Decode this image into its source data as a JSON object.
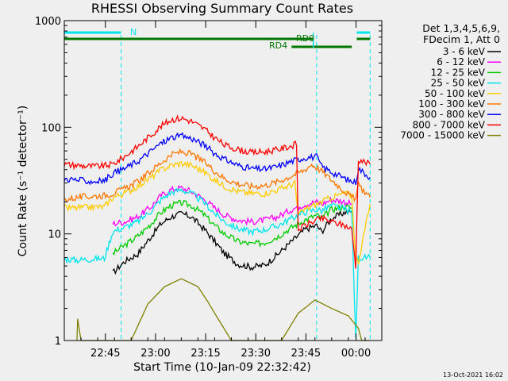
{
  "chart_data": {
    "type": "line",
    "title": "RHESSI Observing Summary Count Rates",
    "xlabel": "Start Time (10-Jan-09 22:32:42)",
    "ylabel": "Count Rate (s⁻¹ detector⁻¹)",
    "yscale": "log",
    "ylim": [
      1,
      1000
    ],
    "x_unit": "minutes since 22:32:42",
    "xlim": [
      0,
      95
    ],
    "y_ticks": [
      {
        "value": 1,
        "label": "1"
      },
      {
        "value": 10,
        "label": "10"
      },
      {
        "value": 100,
        "label": "100"
      },
      {
        "value": 1000,
        "label": "1000"
      }
    ],
    "x_ticks": [
      {
        "value": 12.3,
        "label": "22:45"
      },
      {
        "value": 27.3,
        "label": "23:00"
      },
      {
        "value": 42.3,
        "label": "23:15"
      },
      {
        "value": 57.3,
        "label": "23:30"
      },
      {
        "value": 72.3,
        "label": "23:45"
      },
      {
        "value": 87.3,
        "label": "00:00"
      }
    ],
    "legend_header": [
      "Det 1,3,4,5,6,9,",
      "FDecim 1, Att 0"
    ],
    "flag_labels": {
      "night": "N",
      "rd0": "RD0",
      "rd4": "RD4"
    },
    "flags": [
      {
        "name": "N",
        "color": "#00e5ee",
        "segments": [
          [
            0,
            17
          ]
        ]
      },
      {
        "name": "RD0",
        "color": "#007700",
        "segments": [
          [
            0,
            74.5
          ],
          [
            87.5,
            91.5
          ]
        ]
      },
      {
        "name": "RD4",
        "color": "#007700",
        "segments": [
          [
            68,
            86
          ]
        ]
      }
    ],
    "saa_edges": [
      17,
      75.5,
      91.5
    ],
    "series": [
      {
        "name": "3 - 6 keV",
        "color": "#000000",
        "x": [
          14.5,
          18,
          22,
          26,
          29,
          32,
          35,
          38,
          42,
          45,
          48,
          52,
          56,
          60,
          64,
          68,
          72,
          75.5,
          77,
          80,
          84,
          86
        ],
        "y": [
          4.3,
          5.5,
          6.5,
          9.5,
          12.5,
          14.5,
          15.5,
          14.5,
          11,
          8.5,
          6.5,
          5.2,
          4.9,
          5.1,
          6.5,
          8.5,
          11,
          12,
          10.5,
          14,
          16,
          16
        ]
      },
      {
        "name": "6 - 12 keV",
        "color": "#ff00ff",
        "x": [
          14.5,
          18,
          22,
          26,
          29,
          32,
          35,
          38,
          42,
          45,
          48,
          52,
          56,
          60,
          64,
          68,
          72,
          75.5,
          77,
          80,
          84,
          86
        ],
        "y": [
          12.5,
          13,
          14.5,
          18,
          23,
          26,
          27,
          25,
          21,
          17.5,
          15,
          13.5,
          13,
          13.5,
          14.5,
          17,
          19,
          20,
          19,
          21,
          20,
          19
        ]
      },
      {
        "name": "12 - 25 keV",
        "color": "#00cc00",
        "x": [
          14.5,
          18,
          22,
          26,
          29,
          32,
          35,
          38,
          42,
          45,
          48,
          52,
          56,
          60,
          64,
          68,
          72,
          75.5,
          77,
          80,
          84,
          86
        ],
        "y": [
          6.5,
          7.8,
          9.5,
          12.5,
          16,
          18.5,
          19.5,
          18.5,
          15,
          12,
          10,
          8.5,
          8,
          8.3,
          9.5,
          11.5,
          13.5,
          15,
          14,
          17,
          18,
          17.5
        ]
      },
      {
        "name": "25 - 50 keV",
        "color": "#00e5ee",
        "x": [
          0,
          4,
          8,
          12,
          14.5,
          18,
          22,
          26,
          29,
          32,
          35,
          38,
          42,
          45,
          48,
          52,
          56,
          60,
          64,
          68,
          72,
          75.5,
          77,
          80,
          84,
          86,
          87.2,
          88,
          91.5
        ],
        "y": [
          5.8,
          5.7,
          5.8,
          5.9,
          10.5,
          11.5,
          13,
          16.5,
          21,
          24.5,
          26,
          24,
          19.5,
          15.5,
          13,
          11.2,
          10.5,
          11,
          12,
          14,
          16,
          17,
          16.5,
          18.5,
          17,
          16,
          1,
          6,
          6
        ]
      },
      {
        "name": "50 - 100 keV",
        "color": "#ffcc00",
        "x": [
          0,
          4,
          8,
          12,
          14.5,
          18,
          22,
          26,
          29,
          32,
          35,
          38,
          42,
          45,
          48,
          52,
          56,
          60,
          64,
          68,
          69,
          70,
          72,
          75.5,
          77,
          80,
          84,
          86,
          87.2,
          88,
          91.5
        ],
        "y": [
          17.5,
          17.5,
          17.8,
          18,
          22,
          24,
          28,
          34,
          40,
          44,
          46,
          44,
          38,
          32,
          28,
          25,
          24,
          24,
          26,
          29,
          30,
          15,
          17,
          19,
          20,
          22,
          24,
          23,
          6,
          5.5,
          19
        ]
      },
      {
        "name": "100 - 300 keV",
        "color": "#ff7700",
        "x": [
          0,
          4,
          8,
          12,
          14.5,
          18,
          22,
          26,
          29,
          32,
          35,
          38,
          42,
          45,
          48,
          52,
          56,
          60,
          64,
          68,
          72,
          74,
          75.5,
          77,
          80,
          84,
          86,
          87.2,
          88,
          91.5
        ],
        "y": [
          21,
          22,
          22.5,
          23,
          24,
          26.5,
          31,
          39,
          47,
          55,
          59,
          56,
          47,
          39,
          33,
          29.5,
          28,
          28.5,
          31,
          35,
          40,
          45,
          42,
          39,
          32,
          25,
          22,
          21.5,
          29,
          22
        ]
      },
      {
        "name": "300 - 800 keV",
        "color": "#0000ff",
        "x": [
          0,
          4,
          8,
          12,
          14.5,
          18,
          22,
          26,
          29,
          32,
          35,
          38,
          42,
          45,
          48,
          52,
          56,
          60,
          64,
          68,
          72,
          75.5,
          77,
          80,
          84,
          86,
          87.2,
          88,
          91.5
        ],
        "y": [
          33,
          32,
          31,
          31.5,
          37,
          41,
          48,
          60,
          71,
          80,
          83,
          79,
          68,
          57,
          50,
          44,
          41,
          40.5,
          43,
          48,
          52,
          53,
          43,
          38,
          33,
          31,
          30.5,
          41,
          34
        ]
      },
      {
        "name": "800 - 7000 keV",
        "color": "#ff0000",
        "x": [
          0,
          4,
          8,
          12,
          14.5,
          18,
          22,
          26,
          29,
          32,
          35,
          38,
          42,
          45,
          48,
          52,
          56,
          60,
          64,
          68,
          69.5,
          70,
          72,
          75.5,
          77,
          80,
          84,
          86,
          87.2,
          88,
          91.5
        ],
        "y": [
          45,
          44,
          43,
          43.5,
          45,
          53,
          66,
          85,
          103,
          118,
          122,
          114,
          96,
          80,
          68,
          62,
          58,
          59,
          62,
          67,
          70,
          11,
          12,
          13.5,
          14,
          13,
          12,
          11,
          5,
          50,
          45
        ]
      },
      {
        "name": "7000 - 15000 keV",
        "color": "#808000",
        "x": [
          3.8,
          4,
          5,
          8,
          12,
          14,
          20,
          25,
          30,
          35,
          40,
          43,
          45,
          50,
          60,
          65,
          70,
          75,
          80,
          85,
          88,
          89,
          91.5
        ],
        "y": [
          1,
          1.6,
          1,
          1,
          1,
          1,
          1,
          2.2,
          3.2,
          3.8,
          3.2,
          2.3,
          1.8,
          1,
          1,
          1,
          1.8,
          2.4,
          2.0,
          1.7,
          1.3,
          1,
          1
        ]
      }
    ],
    "legend_position": "right"
  },
  "footer": {
    "date": "13-Oct-2021 16:02"
  }
}
